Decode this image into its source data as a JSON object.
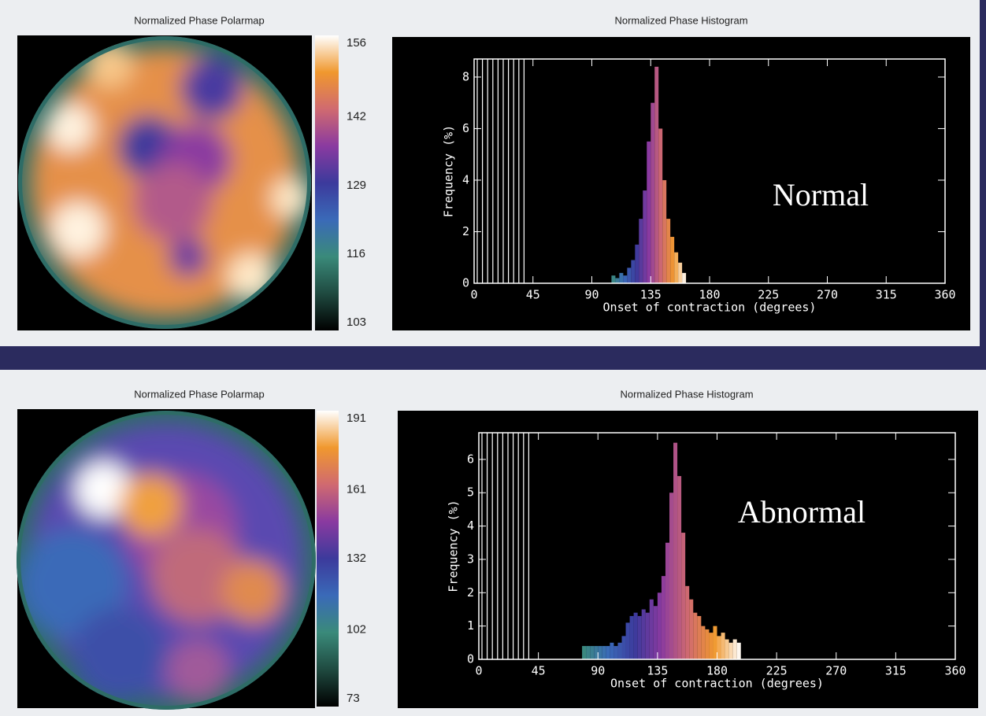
{
  "chart_data": [
    {
      "type": "polarmap",
      "title": "Normalized Phase Polarmap",
      "clim": [
        103,
        156
      ],
      "cticks": [
        103,
        116,
        129,
        142,
        156
      ]
    },
    {
      "type": "histogram",
      "title": "Normalized Phase Histogram",
      "xlabel": "Onset of contraction (degrees)",
      "ylabel": "Frequency (%)",
      "annotation": "Normal",
      "bins": [
        105,
        108,
        111,
        114,
        117,
        120,
        123,
        126,
        129,
        132,
        135,
        138,
        141,
        144,
        147,
        150,
        153,
        156,
        159,
        162
      ],
      "values": [
        0.3,
        0.2,
        0.4,
        0.3,
        0.6,
        0.9,
        1.5,
        2.5,
        3.6,
        5.5,
        7.0,
        8.4,
        6.0,
        4.0,
        2.5,
        1.8,
        1.2,
        0.8,
        0.4
      ],
      "xlim": [
        0,
        360
      ],
      "xticks": [
        0,
        45,
        90,
        135,
        180,
        225,
        270,
        315,
        360
      ],
      "ylim": [
        0,
        8.7
      ],
      "yticks": [
        0,
        2,
        4,
        6,
        8
      ]
    },
    {
      "type": "polarmap",
      "title": "Normalized Phase Polarmap",
      "clim": [
        73,
        191
      ],
      "cticks": [
        73,
        102,
        132,
        161,
        191
      ]
    },
    {
      "type": "histogram",
      "title": "Normalized Phase Histogram",
      "xlabel": "Onset of contraction (degrees)",
      "ylabel": "Frequency (%)",
      "annotation": "Abnormal",
      "bins": [
        78,
        81,
        84,
        87,
        90,
        93,
        96,
        99,
        102,
        105,
        108,
        111,
        114,
        117,
        120,
        123,
        126,
        129,
        132,
        135,
        138,
        141,
        144,
        147,
        150,
        153,
        156,
        159,
        162,
        165,
        168,
        171,
        174,
        177,
        180,
        183,
        186,
        189,
        192,
        195,
        198
      ],
      "values": [
        0.4,
        0.4,
        0.4,
        0.4,
        0.4,
        0.4,
        0.4,
        0.5,
        0.4,
        0.5,
        0.7,
        1.1,
        1.3,
        1.4,
        1.3,
        1.5,
        1.4,
        1.8,
        1.6,
        2.0,
        2.5,
        3.5,
        5.0,
        6.5,
        5.5,
        3.8,
        2.2,
        1.8,
        1.4,
        1.3,
        1.0,
        0.9,
        0.8,
        1.0,
        0.7,
        0.8,
        0.6,
        0.5,
        0.6,
        0.5
      ],
      "xlim": [
        0,
        360
      ],
      "xticks": [
        0,
        45,
        90,
        135,
        180,
        225,
        270,
        315,
        360
      ],
      "ylim": [
        0,
        6.8
      ],
      "yticks": [
        0,
        1,
        2,
        3,
        4,
        5,
        6
      ]
    }
  ],
  "colormap": [
    "#000000",
    "#1f4a40",
    "#3a8a7a",
    "#3a6ab8",
    "#3c3a9c",
    "#8a3aa0",
    "#d06a70",
    "#f0982e",
    "#ffffff"
  ]
}
